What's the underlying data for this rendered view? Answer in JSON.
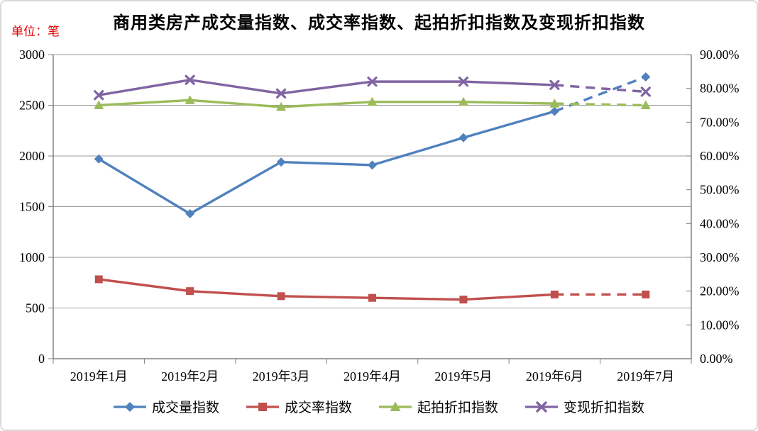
{
  "chart_data": {
    "type": "line",
    "title": "商用类房产成交量指数、成交率指数、起拍折扣指数及变现折扣指数",
    "categories": [
      "2019年1月",
      "2019年2月",
      "2019年3月",
      "2019年4月",
      "2019年5月",
      "2019年6月",
      "2019年7月"
    ],
    "series": [
      {
        "name": "成交量指数",
        "axis": "left",
        "color": "#4F81BD",
        "marker": "diamond",
        "values": [
          1970,
          1430,
          1940,
          1910,
          2180,
          2440,
          2780
        ]
      },
      {
        "name": "成交率指数",
        "axis": "right",
        "color": "#C0504D",
        "marker": "square",
        "values": [
          23.5,
          20,
          18.5,
          18,
          17.5,
          19,
          19
        ]
      },
      {
        "name": "起拍折扣指数",
        "axis": "right",
        "color": "#9BBB59",
        "marker": "triangle",
        "values": [
          75,
          76.5,
          74.5,
          76,
          76,
          75.5,
          75
        ]
      },
      {
        "name": "变现折扣指数",
        "axis": "right",
        "color": "#8064A2",
        "marker": "x",
        "values": [
          78,
          82.5,
          78.5,
          82,
          82,
          81,
          79
        ]
      }
    ],
    "y_left": {
      "label": "单位：笔",
      "label_color": "#e00000",
      "min": 0,
      "max": 3000,
      "step": 500,
      "ticks": [
        "3000",
        "2500",
        "2000",
        "1500",
        "1000",
        "500",
        "0"
      ]
    },
    "y_right": {
      "min": 0,
      "max": 90,
      "step": 10,
      "ticks": [
        "90.00%",
        "80.00%",
        "70.00%",
        "60.00%",
        "50.00%",
        "40.00%",
        "30.00%",
        "20.00%",
        "10.00%",
        "0.00%"
      ]
    },
    "grid": true,
    "legend_position": "bottom",
    "last_segment_dashed": true
  }
}
